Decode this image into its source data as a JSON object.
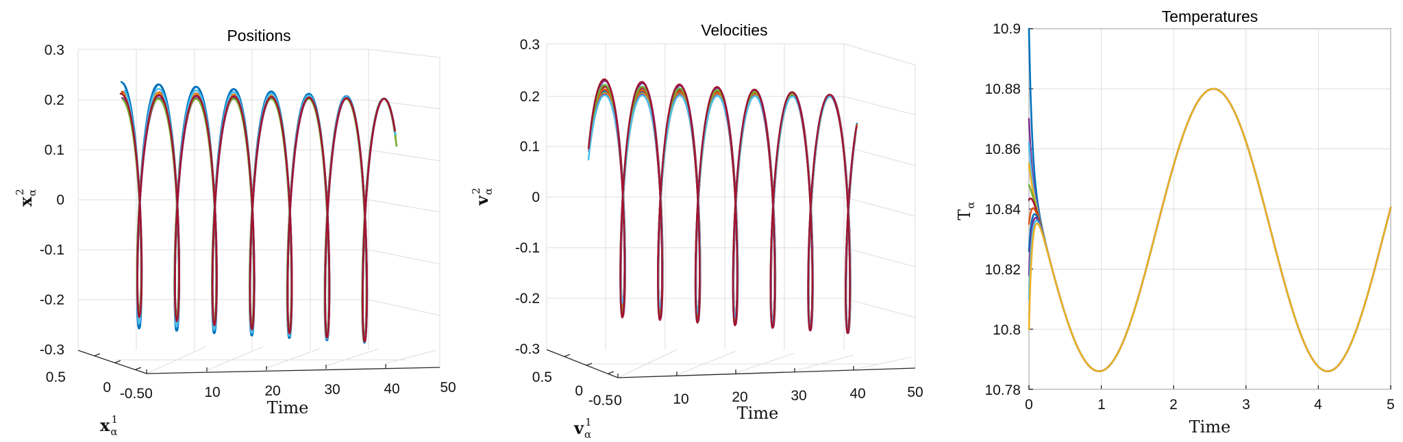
{
  "chart_data": [
    {
      "type": "line",
      "projection": "3d",
      "title": "Positions",
      "xlabel": "Time",
      "ylabel_main": "x",
      "ylabel_sup": "1",
      "ylabel_sub": "α",
      "zlabel_main": "x",
      "zlabel_sup": "2",
      "zlabel_sub": "α",
      "xticks": [
        "0",
        "10",
        "20",
        "30",
        "40",
        "50"
      ],
      "yticks": [
        "0.5",
        "0",
        "-0.5"
      ],
      "zticks": [
        "0.3",
        "0.2",
        "0.1",
        "0",
        "-0.1",
        "-0.2",
        "-0.3"
      ],
      "xlim": [
        0,
        50
      ],
      "ylim": [
        -0.5,
        0.5
      ],
      "zlim": [
        -0.3,
        0.3
      ],
      "grid": true,
      "series_description": "many particle trajectories spiralling along the Time axis, amplitude about 0.2 to 0.27",
      "amplitude": 0.25,
      "period": 6.3,
      "t_range": [
        0,
        45
      ]
    },
    {
      "type": "line",
      "projection": "3d",
      "title": "Velocities",
      "xlabel": "Time",
      "ylabel_main": "v",
      "ylabel_sup": "1",
      "ylabel_sub": "α",
      "zlabel_main": "v",
      "zlabel_sup": "2",
      "zlabel_sub": "α",
      "xticks": [
        "0",
        "10",
        "20",
        "30",
        "40",
        "50"
      ],
      "yticks": [
        "0.5",
        "0",
        "-0.5"
      ],
      "zticks": [
        "0.3",
        "0.2",
        "0.1",
        "0",
        "-0.1",
        "-0.2",
        "-0.3"
      ],
      "xlim": [
        0,
        50
      ],
      "ylim": [
        -0.5,
        0.5
      ],
      "zlim": [
        -0.3,
        0.3
      ],
      "grid": true,
      "series_description": "many particle velocity trajectories spiralling along the Time axis",
      "amplitude": 0.24,
      "period": 6.3,
      "t_range": [
        0,
        45
      ]
    },
    {
      "type": "line",
      "title": "Temperatures",
      "xlabel": "Time",
      "ylabel_main": "T",
      "ylabel_sub": "α",
      "xticks": [
        "0",
        "1",
        "2",
        "3",
        "4",
        "5"
      ],
      "yticks": [
        "10.78",
        "10.8",
        "10.82",
        "10.84",
        "10.86",
        "10.88",
        "10.9"
      ],
      "xlim": [
        0,
        5
      ],
      "ylim": [
        10.78,
        10.9
      ],
      "grid": true,
      "mean_temperature": 10.833,
      "oscillation_amplitude": 0.047,
      "minima_at": [
        0.98,
        4.13
      ],
      "maximum_at": 2.55,
      "initial_spread": [
        10.8,
        10.9
      ]
    }
  ],
  "colors": [
    "#0072BD",
    "#D95319",
    "#EDB120",
    "#7E2F8E",
    "#77AC30",
    "#4DBEEE",
    "#A2142F"
  ]
}
